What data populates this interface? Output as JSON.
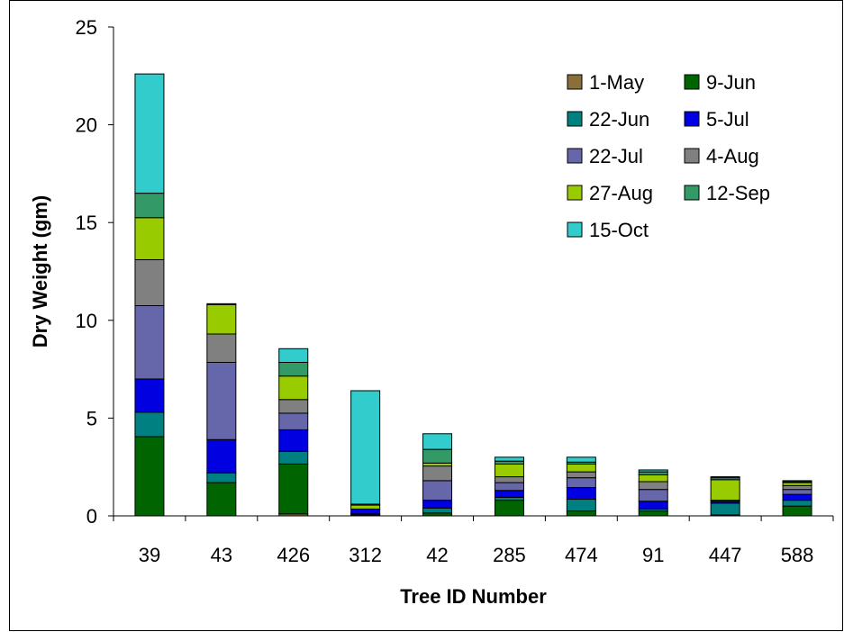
{
  "chart_data": {
    "type": "bar",
    "stacked": true,
    "title": "",
    "xlabel": "Tree ID Number",
    "ylabel": "Dry Weight  (gm)",
    "ylim": [
      0,
      25
    ],
    "yticks": [
      "0",
      "5",
      "10",
      "15",
      "20",
      "25"
    ],
    "grid": false,
    "legend_position": "top-right",
    "categories": [
      "39",
      "43",
      "426",
      "312",
      "42",
      "285",
      "474",
      "91",
      "447",
      "588"
    ],
    "series": [
      {
        "name": "1-May",
        "color": "#8B6F3A",
        "values": [
          0.0,
          0.0,
          0.1,
          0.0,
          0.0,
          0.0,
          0.0,
          0.0,
          0.0,
          0.0
        ]
      },
      {
        "name": "9-Jun",
        "color": "#006400",
        "values": [
          4.05,
          1.7,
          2.55,
          0.05,
          0.15,
          0.8,
          0.25,
          0.25,
          0.05,
          0.5
        ]
      },
      {
        "name": "22-Jun",
        "color": "#008080",
        "values": [
          1.25,
          0.5,
          0.65,
          0.05,
          0.25,
          0.15,
          0.6,
          0.1,
          0.6,
          0.3
        ]
      },
      {
        "name": "5-Jul",
        "color": "#0000E0",
        "values": [
          1.7,
          1.7,
          1.1,
          0.25,
          0.4,
          0.35,
          0.6,
          0.4,
          0.1,
          0.3
        ]
      },
      {
        "name": "22-Jul",
        "color": "#6666AA",
        "values": [
          3.75,
          3.95,
          0.85,
          0.0,
          1.0,
          0.4,
          0.5,
          0.6,
          0.0,
          0.25
        ]
      },
      {
        "name": "4-Aug",
        "color": "#808080",
        "values": [
          2.35,
          1.45,
          0.7,
          0.0,
          0.75,
          0.3,
          0.3,
          0.4,
          0.05,
          0.2
        ]
      },
      {
        "name": "27-Aug",
        "color": "#99CC00",
        "values": [
          2.15,
          1.5,
          1.2,
          0.2,
          0.15,
          0.65,
          0.4,
          0.35,
          1.05,
          0.15
        ]
      },
      {
        "name": "12-Sep",
        "color": "#339966",
        "values": [
          1.25,
          0.05,
          0.7,
          0.05,
          0.7,
          0.15,
          0.1,
          0.15,
          0.1,
          0.05
        ]
      },
      {
        "name": "15-Oct",
        "color": "#33CCCC",
        "values": [
          6.1,
          0.0,
          0.7,
          5.8,
          0.8,
          0.2,
          0.25,
          0.1,
          0.05,
          0.05
        ]
      }
    ]
  }
}
